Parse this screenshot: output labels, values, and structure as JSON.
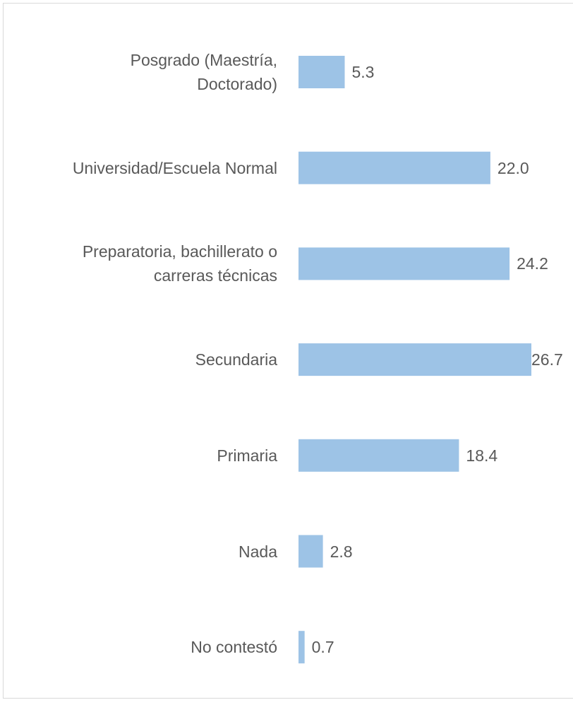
{
  "chart_data": {
    "type": "bar",
    "orientation": "horizontal",
    "categories": [
      "Posgrado (Maestría,\nDoctorado)",
      "Universidad/Escuela Normal",
      "Preparatoria, bachillerato o\ncarreras técnicas",
      "Secundaria",
      "Primaria",
      "Nada",
      "No contestó"
    ],
    "values": [
      5.3,
      22.0,
      24.2,
      26.7,
      18.4,
      2.8,
      0.7
    ],
    "value_labels": [
      "5.3",
      "22.0",
      "24.2",
      "26.7",
      "18.4",
      "2.8",
      "0.7"
    ],
    "color": "#9dc3e6"
  }
}
